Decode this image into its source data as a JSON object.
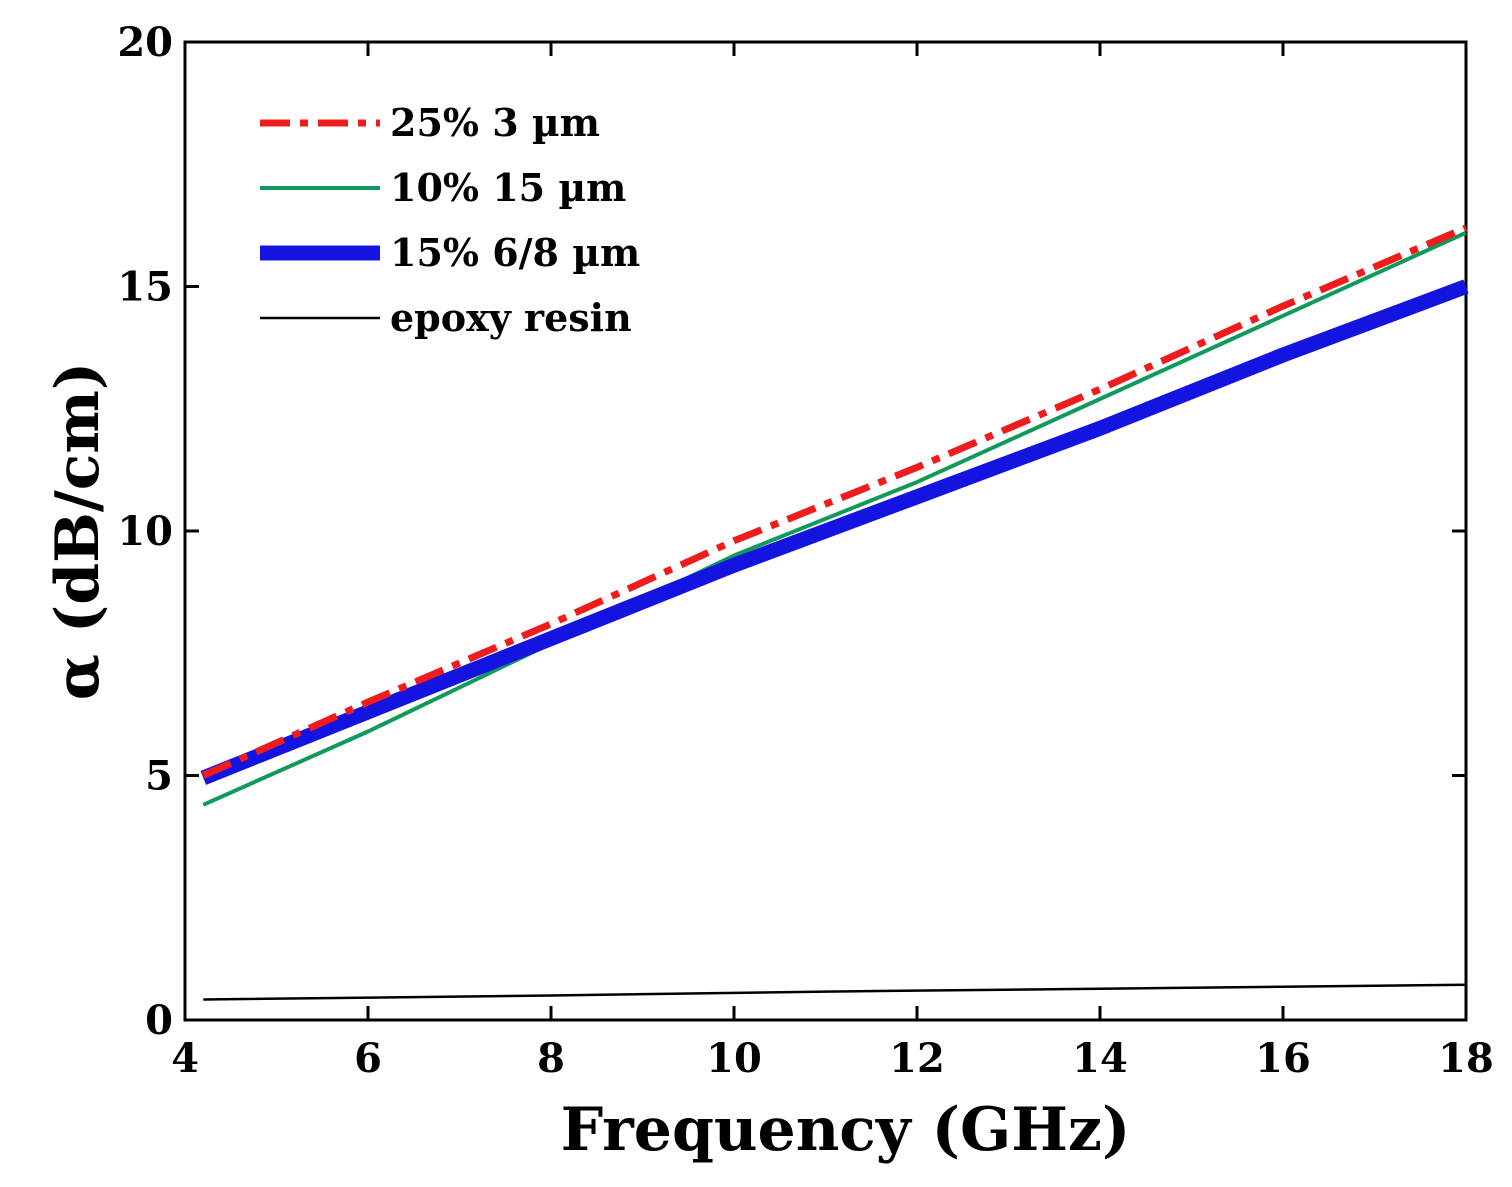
{
  "chart_data": {
    "type": "line",
    "title": "",
    "xlabel": "Frequency (GHz)",
    "ylabel": "α (dB/cm)",
    "xlim": [
      4,
      18
    ],
    "ylim": [
      0,
      20
    ],
    "xticks": [
      4,
      6,
      8,
      10,
      12,
      14,
      16,
      18
    ],
    "yticks": [
      0,
      5,
      10,
      15,
      20
    ],
    "xtick_labels": [
      "4",
      "6",
      "8",
      "10",
      "12",
      "14",
      "16",
      "18"
    ],
    "ytick_labels": [
      "0",
      "5",
      "10",
      "15",
      "20"
    ],
    "grid": false,
    "legend_position": "top-left",
    "series": [
      {
        "name": "25% 3 µm",
        "color": "#ee1c1c",
        "style": "dash-dot",
        "x": [
          4.2,
          6,
          8,
          10,
          12,
          14,
          16,
          18
        ],
        "y": [
          5.0,
          6.5,
          8.1,
          9.8,
          11.3,
          12.9,
          14.6,
          16.2
        ]
      },
      {
        "name": "10% 15 µm",
        "color": "#0f9a5c",
        "style": "solid",
        "x": [
          4.2,
          6,
          8,
          10,
          12,
          14,
          16,
          18
        ],
        "y": [
          4.4,
          5.9,
          7.7,
          9.5,
          11.0,
          12.7,
          14.4,
          16.1
        ]
      },
      {
        "name": "15% 6/8 µm",
        "color": "#1414e0",
        "style": "thick",
        "x": [
          4.2,
          6,
          8,
          10,
          12,
          14,
          16,
          18
        ],
        "y": [
          4.95,
          6.3,
          7.8,
          9.3,
          10.7,
          12.1,
          13.6,
          15.0
        ]
      },
      {
        "name": "epoxy resin",
        "color": "#000000",
        "style": "thin",
        "x": [
          4.2,
          8,
          11,
          14,
          18
        ],
        "y": [
          0.42,
          0.5,
          0.58,
          0.64,
          0.72
        ]
      }
    ]
  }
}
